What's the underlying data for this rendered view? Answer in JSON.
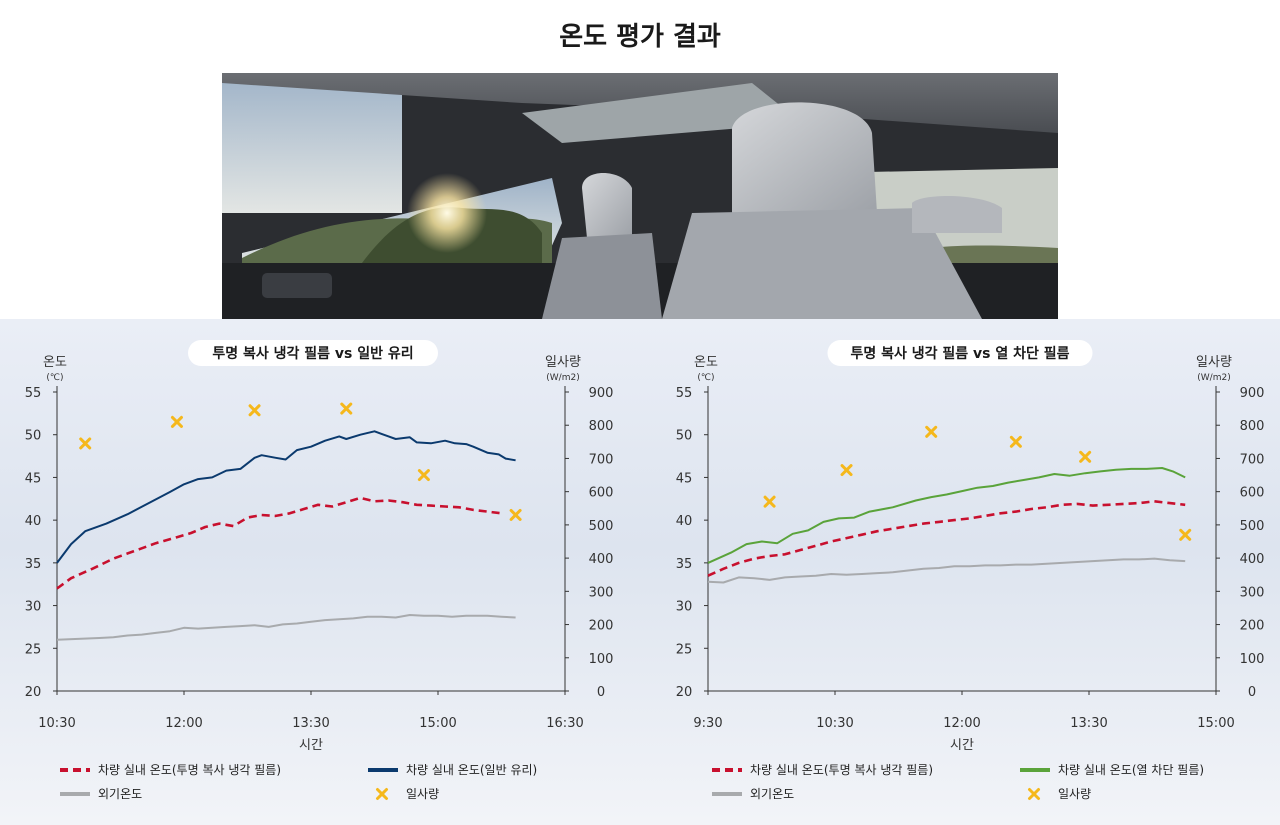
{
  "title": "온도 평가 결과",
  "colors": {
    "film_temp": "#c8102e",
    "general_glass": "#0b3a6e",
    "heat_block_film": "#5aa33a",
    "outdoor": "#a8aaad",
    "solar": "#f5b81c"
  },
  "chart_data": [
    {
      "type": "line",
      "title": "투명 복사 냉각 필름 vs 일반 유리",
      "xlabel": "시간",
      "ylabel_left": "온도",
      "ylabel_left_unit": "(℃)",
      "ylabel_right": "일사량",
      "ylabel_right_unit": "(W/m2)",
      "x_ticks": [
        "10:30",
        "12:00",
        "13:30",
        "15:00",
        "16:30"
      ],
      "xlim_minutes": [
        630,
        990
      ],
      "y_left_ticks": [
        "55",
        "50",
        "45",
        "40",
        "35",
        "30",
        "25",
        "20"
      ],
      "ylim_left": [
        20,
        55
      ],
      "y_right_ticks": [
        "900",
        "800",
        "700",
        "600",
        "500",
        "400",
        "300",
        "200",
        "100",
        "0"
      ],
      "ylim_right": [
        0,
        900
      ],
      "series": [
        {
          "name": "차량 실내 온도(투명 복사 냉각 필름)",
          "style": "dashed",
          "color_key": "film_temp",
          "axis": "left",
          "points": [
            [
              630,
              32.0
            ],
            [
              640,
              33.2
            ],
            [
              655,
              34.3
            ],
            [
              670,
              35.5
            ],
            [
              685,
              36.4
            ],
            [
              700,
              37.3
            ],
            [
              715,
              38.0
            ],
            [
              725,
              38.5
            ],
            [
              735,
              39.2
            ],
            [
              745,
              39.6
            ],
            [
              755,
              39.3
            ],
            [
              765,
              40.3
            ],
            [
              775,
              40.6
            ],
            [
              785,
              40.5
            ],
            [
              795,
              40.8
            ],
            [
              805,
              41.3
            ],
            [
              815,
              41.8
            ],
            [
              825,
              41.6
            ],
            [
              835,
              42.1
            ],
            [
              845,
              42.6
            ],
            [
              855,
              42.2
            ],
            [
              865,
              42.3
            ],
            [
              875,
              42.1
            ],
            [
              885,
              41.8
            ],
            [
              895,
              41.7
            ],
            [
              905,
              41.6
            ],
            [
              915,
              41.5
            ],
            [
              925,
              41.2
            ],
            [
              935,
              41.0
            ],
            [
              945,
              40.8
            ]
          ]
        },
        {
          "name": "차량 실내 온도(일반 유리)",
          "style": "solid",
          "color_key": "general_glass",
          "axis": "left",
          "points": [
            [
              630,
              35.0
            ],
            [
              640,
              37.2
            ],
            [
              650,
              38.7
            ],
            [
              665,
              39.6
            ],
            [
              680,
              40.7
            ],
            [
              695,
              42.0
            ],
            [
              710,
              43.3
            ],
            [
              720,
              44.2
            ],
            [
              730,
              44.8
            ],
            [
              740,
              45.0
            ],
            [
              750,
              45.8
            ],
            [
              760,
              46.0
            ],
            [
              770,
              47.3
            ],
            [
              775,
              47.6
            ],
            [
              785,
              47.3
            ],
            [
              792,
              47.1
            ],
            [
              800,
              48.2
            ],
            [
              810,
              48.6
            ],
            [
              820,
              49.3
            ],
            [
              830,
              49.8
            ],
            [
              835,
              49.5
            ],
            [
              845,
              50.0
            ],
            [
              855,
              50.4
            ],
            [
              860,
              50.1
            ],
            [
              865,
              49.8
            ],
            [
              870,
              49.5
            ],
            [
              880,
              49.7
            ],
            [
              885,
              49.1
            ],
            [
              895,
              49.0
            ],
            [
              905,
              49.3
            ],
            [
              912,
              49.0
            ],
            [
              920,
              48.9
            ],
            [
              925,
              48.6
            ],
            [
              935,
              47.9
            ],
            [
              943,
              47.7
            ],
            [
              948,
              47.2
            ],
            [
              955,
              47.0
            ]
          ]
        },
        {
          "name": "외기온도",
          "style": "solid",
          "color_key": "outdoor",
          "axis": "left",
          "points": [
            [
              630,
              26.0
            ],
            [
              645,
              26.1
            ],
            [
              660,
              26.2
            ],
            [
              670,
              26.3
            ],
            [
              680,
              26.5
            ],
            [
              690,
              26.6
            ],
            [
              700,
              26.8
            ],
            [
              710,
              27.0
            ],
            [
              720,
              27.4
            ],
            [
              730,
              27.3
            ],
            [
              740,
              27.4
            ],
            [
              750,
              27.5
            ],
            [
              760,
              27.6
            ],
            [
              770,
              27.7
            ],
            [
              780,
              27.5
            ],
            [
              790,
              27.8
            ],
            [
              800,
              27.9
            ],
            [
              810,
              28.1
            ],
            [
              820,
              28.3
            ],
            [
              830,
              28.4
            ],
            [
              840,
              28.5
            ],
            [
              850,
              28.7
            ],
            [
              860,
              28.7
            ],
            [
              870,
              28.6
            ],
            [
              880,
              28.9
            ],
            [
              890,
              28.8
            ],
            [
              900,
              28.8
            ],
            [
              910,
              28.7
            ],
            [
              920,
              28.8
            ],
            [
              935,
              28.8
            ],
            [
              945,
              28.7
            ],
            [
              955,
              28.6
            ]
          ]
        },
        {
          "name": "일사량",
          "style": "marker",
          "color_key": "solar",
          "axis": "right",
          "points": [
            [
              650,
              745
            ],
            [
              715,
              810
            ],
            [
              770,
              845
            ],
            [
              835,
              850
            ],
            [
              890,
              650
            ],
            [
              955,
              530
            ]
          ]
        }
      ],
      "legend": [
        {
          "label": "차량 실내 온도(투명 복사 냉각 필름)",
          "style": "dashed",
          "color_key": "film_temp"
        },
        {
          "label": "차량 실내 온도(일반 유리)",
          "style": "solid",
          "color_key": "general_glass"
        },
        {
          "label": "외기온도",
          "style": "solid",
          "color_key": "outdoor"
        },
        {
          "label": "일사량",
          "style": "marker",
          "color_key": "solar"
        }
      ]
    },
    {
      "type": "line",
      "title": "투명 복사 냉각 필름 vs 열 차단 필름",
      "xlabel": "시간",
      "ylabel_left": "온도",
      "ylabel_left_unit": "(℃)",
      "ylabel_right": "일사량",
      "ylabel_right_unit": "(W/m2)",
      "x_ticks": [
        "9:30",
        "10:30",
        "12:00",
        "13:30",
        "15:00"
      ],
      "xlim_minutes": [
        570,
        900
      ],
      "y_left_ticks": [
        "55",
        "50",
        "45",
        "40",
        "35",
        "30",
        "25",
        "20"
      ],
      "ylim_left": [
        20,
        55
      ],
      "y_right_ticks": [
        "900",
        "800",
        "700",
        "600",
        "500",
        "400",
        "300",
        "200",
        "100",
        "0"
      ],
      "ylim_right": [
        0,
        900
      ],
      "series": [
        {
          "name": "차량 실내 온도(투명 복사 냉각 필름)",
          "style": "dashed",
          "color_key": "film_temp",
          "axis": "left",
          "points": [
            [
              570,
              33.5
            ],
            [
              580,
              34.3
            ],
            [
              590,
              35.0
            ],
            [
              600,
              35.5
            ],
            [
              610,
              35.8
            ],
            [
              620,
              36.0
            ],
            [
              630,
              36.5
            ],
            [
              640,
              37.0
            ],
            [
              650,
              37.5
            ],
            [
              660,
              37.9
            ],
            [
              670,
              38.3
            ],
            [
              680,
              38.7
            ],
            [
              690,
              39.0
            ],
            [
              700,
              39.3
            ],
            [
              710,
              39.6
            ],
            [
              720,
              39.8
            ],
            [
              730,
              40.0
            ],
            [
              740,
              40.2
            ],
            [
              750,
              40.5
            ],
            [
              760,
              40.8
            ],
            [
              770,
              41.0
            ],
            [
              780,
              41.3
            ],
            [
              790,
              41.5
            ],
            [
              800,
              41.8
            ],
            [
              810,
              41.9
            ],
            [
              820,
              41.7
            ],
            [
              830,
              41.8
            ],
            [
              840,
              41.9
            ],
            [
              850,
              42.0
            ],
            [
              860,
              42.2
            ],
            [
              870,
              42.0
            ],
            [
              880,
              41.8
            ]
          ]
        },
        {
          "name": "차량 실내 온도(열 차단 필름)",
          "style": "solid",
          "color_key": "heat_block_film",
          "axis": "left",
          "points": [
            [
              570,
              35.0
            ],
            [
              585,
              36.2
            ],
            [
              595,
              37.2
            ],
            [
              605,
              37.5
            ],
            [
              615,
              37.3
            ],
            [
              625,
              38.4
            ],
            [
              635,
              38.8
            ],
            [
              645,
              39.8
            ],
            [
              655,
              40.2
            ],
            [
              665,
              40.3
            ],
            [
              675,
              41.0
            ],
            [
              690,
              41.5
            ],
            [
              705,
              42.3
            ],
            [
              715,
              42.7
            ],
            [
              725,
              43.0
            ],
            [
              735,
              43.4
            ],
            [
              745,
              43.8
            ],
            [
              755,
              44.0
            ],
            [
              765,
              44.4
            ],
            [
              775,
              44.7
            ],
            [
              785,
              45.0
            ],
            [
              795,
              45.4
            ],
            [
              805,
              45.2
            ],
            [
              815,
              45.5
            ],
            [
              825,
              45.7
            ],
            [
              835,
              45.9
            ],
            [
              845,
              46.0
            ],
            [
              855,
              46.0
            ],
            [
              865,
              46.1
            ],
            [
              872,
              45.7
            ],
            [
              880,
              45.0
            ]
          ]
        },
        {
          "name": "외기온도",
          "style": "solid",
          "color_key": "outdoor",
          "axis": "left",
          "points": [
            [
              570,
              32.8
            ],
            [
              580,
              32.7
            ],
            [
              590,
              33.3
            ],
            [
              600,
              33.2
            ],
            [
              610,
              33.0
            ],
            [
              620,
              33.3
            ],
            [
              630,
              33.4
            ],
            [
              640,
              33.5
            ],
            [
              650,
              33.7
            ],
            [
              660,
              33.6
            ],
            [
              670,
              33.7
            ],
            [
              680,
              33.8
            ],
            [
              690,
              33.9
            ],
            [
              700,
              34.1
            ],
            [
              710,
              34.3
            ],
            [
              720,
              34.4
            ],
            [
              730,
              34.6
            ],
            [
              740,
              34.6
            ],
            [
              750,
              34.7
            ],
            [
              760,
              34.7
            ],
            [
              770,
              34.8
            ],
            [
              780,
              34.8
            ],
            [
              790,
              34.9
            ],
            [
              800,
              35.0
            ],
            [
              810,
              35.1
            ],
            [
              820,
              35.2
            ],
            [
              830,
              35.3
            ],
            [
              840,
              35.4
            ],
            [
              850,
              35.4
            ],
            [
              860,
              35.5
            ],
            [
              870,
              35.3
            ],
            [
              880,
              35.2
            ]
          ]
        },
        {
          "name": "일사량",
          "style": "marker",
          "color_key": "solar",
          "axis": "right",
          "points": [
            [
              610,
              570
            ],
            [
              660,
              665
            ],
            [
              715,
              780
            ],
            [
              770,
              750
            ],
            [
              815,
              705
            ],
            [
              880,
              470
            ]
          ]
        }
      ],
      "legend": [
        {
          "label": "차량 실내 온도(투명 복사 냉각 필름)",
          "style": "dashed",
          "color_key": "film_temp"
        },
        {
          "label": "차량 실내 온도(열 차단 필름)",
          "style": "solid",
          "color_key": "heat_block_film"
        },
        {
          "label": "외기온도",
          "style": "solid",
          "color_key": "outdoor"
        },
        {
          "label": "일사량",
          "style": "marker",
          "color_key": "solar"
        }
      ]
    }
  ]
}
